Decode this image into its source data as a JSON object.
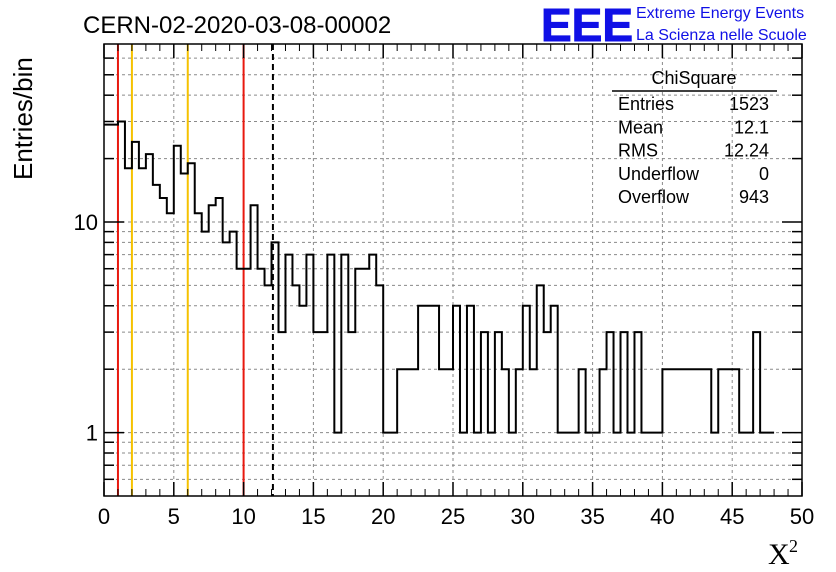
{
  "chart_data": {
    "type": "histogram",
    "title": "CERN-02-2020-03-08-00002",
    "xlabel": "X",
    "xlabel_superscript": "2",
    "ylabel": "Entries/bin",
    "xlim": [
      0,
      50
    ],
    "ylim": [
      0.5,
      70
    ],
    "yscale": "log",
    "grid": true,
    "bin_width": 0.5,
    "x_ticks": [
      "0",
      "5",
      "10",
      "15",
      "20",
      "25",
      "30",
      "35",
      "40",
      "45",
      "50"
    ],
    "y_ticks": [
      "1",
      "10"
    ],
    "bin_values": [
      29,
      29,
      30,
      18,
      24,
      18,
      21,
      15,
      13,
      11,
      23,
      17,
      19,
      11,
      9,
      12,
      13,
      8,
      9,
      6,
      6,
      12,
      6,
      5,
      8,
      3,
      7,
      5,
      4,
      7,
      3,
      3,
      7,
      1,
      7,
      3,
      6,
      6,
      7,
      5,
      1,
      1,
      2,
      2,
      2,
      4,
      4,
      4,
      2,
      2,
      4,
      1,
      4,
      1,
      3,
      1,
      3,
      2,
      1,
      2,
      4,
      2,
      5,
      3,
      4,
      1,
      1,
      1,
      2,
      1,
      1,
      2,
      3,
      1,
      3,
      1,
      3,
      1,
      1,
      1,
      2,
      2,
      2,
      2,
      2,
      2,
      2,
      1,
      2,
      2,
      2,
      1,
      1,
      3,
      1,
      1
    ],
    "vertical_lines": [
      {
        "x": 1,
        "color": "#e8190f",
        "style": "solid"
      },
      {
        "x": 2,
        "color": "#f5c200",
        "style": "solid"
      },
      {
        "x": 6,
        "color": "#f5c200",
        "style": "solid"
      },
      {
        "x": 10,
        "color": "#e8190f",
        "style": "solid"
      },
      {
        "x": 12.1,
        "color": "#000000",
        "style": "dashed"
      }
    ],
    "stats_box": {
      "title": "ChiSquare",
      "rows": [
        {
          "label": "Entries",
          "value": "1523"
        },
        {
          "label": "Mean",
          "value": "12.1"
        },
        {
          "label": "RMS",
          "value": "12.24"
        },
        {
          "label": "Underflow",
          "value": "0"
        },
        {
          "label": "Overflow",
          "value": "943"
        }
      ]
    }
  },
  "logo": {
    "mark": "EEE",
    "line1": "Extreme Energy Events",
    "line2": "La Scienza nelle Scuole",
    "color": "#1010e6"
  }
}
